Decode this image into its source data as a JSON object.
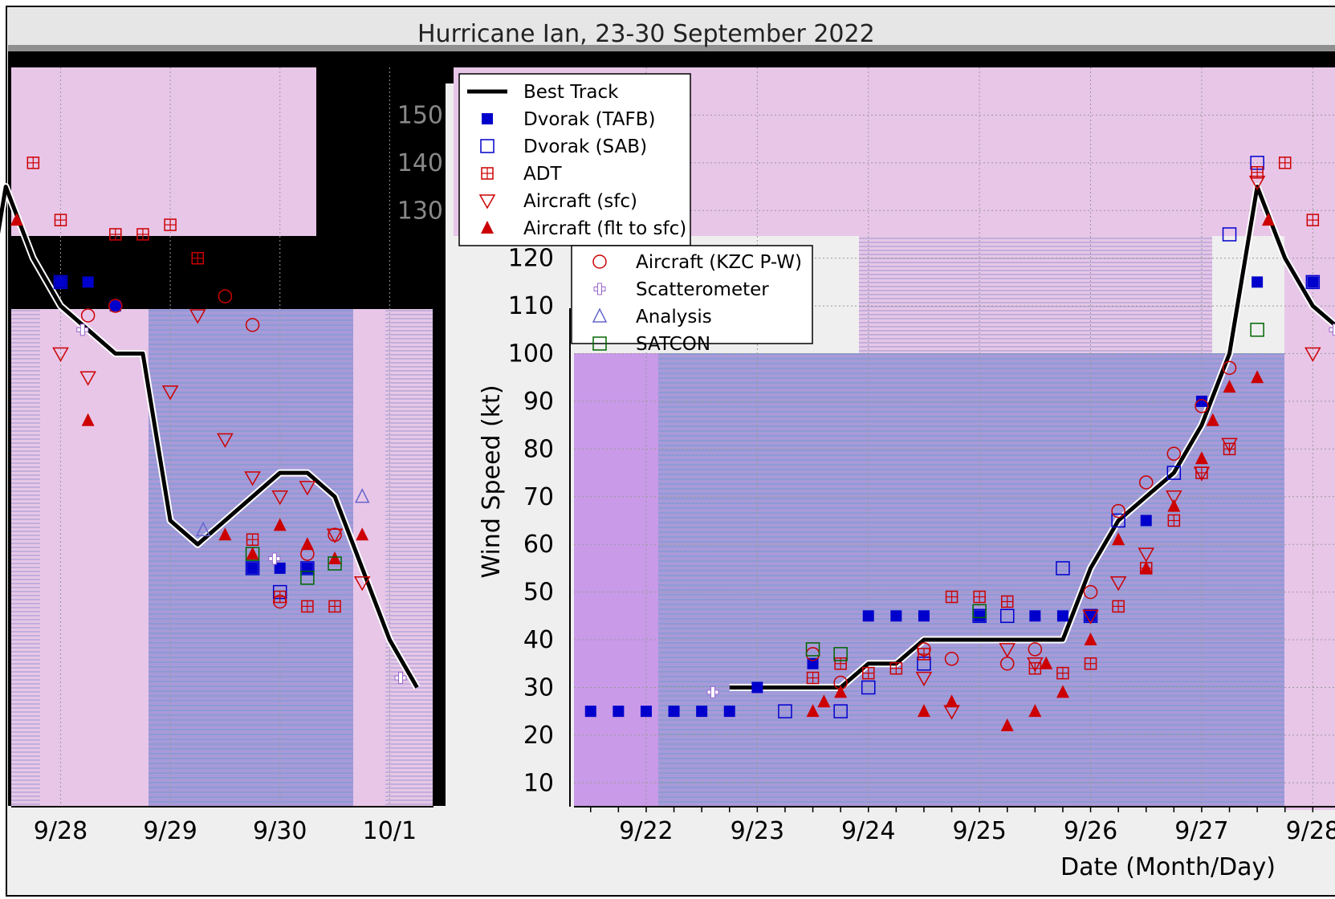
{
  "chart_data": {
    "type": "scatter",
    "title": "Hurricane Ian, 23-30 September 2022",
    "xlabel": "Date (Month/Day)",
    "ylabel": "Wind Speed (kt)",
    "ylim": [
      5,
      160
    ],
    "y_ticks": [
      10,
      20,
      30,
      40,
      50,
      60,
      70,
      80,
      90,
      100,
      110,
      120,
      130,
      140,
      150
    ],
    "x_tick_labels": [
      "9/22",
      "9/23",
      "9/24",
      "9/25",
      "9/26",
      "9/27",
      "9/28",
      "9/29",
      "9/30",
      "10/1"
    ],
    "x_day_range": [
      21,
      32.5
    ],
    "legend_position": "upper-left",
    "legend": [
      "Best Track",
      "Dvorak (TAFB)",
      "Dvorak (SAB)",
      "ADT",
      "Aircraft (sfc)",
      "Aircraft (flt to sfc)",
      "Aircraft (KZC P-W)",
      "Scatterometer",
      "Analysis",
      "SATCON"
    ],
    "series": [
      {
        "name": "Best Track",
        "marker": "line",
        "color": "#000000",
        "x": [
          22.75,
          23.0,
          23.25,
          23.5,
          23.75,
          24.0,
          24.25,
          24.5,
          24.75,
          25.0,
          25.25,
          25.5,
          25.75,
          26.0,
          26.25,
          26.5,
          26.75,
          27.0,
          27.25,
          27.5,
          27.75,
          28.0,
          28.25,
          28.5,
          28.75,
          29.0,
          29.25,
          29.5,
          29.75,
          30.0,
          30.25,
          30.5,
          30.75,
          31.0,
          31.25
        ],
        "y": [
          30,
          30,
          30,
          30,
          30,
          35,
          35,
          40,
          40,
          40,
          40,
          40,
          40,
          55,
          65,
          70,
          75,
          85,
          100,
          135,
          120,
          110,
          105,
          100,
          100,
          65,
          60,
          65,
          70,
          75,
          75,
          70,
          55,
          40,
          30
        ]
      },
      {
        "name": "Dvorak (TAFB)",
        "marker": "square-filled",
        "color": "#0000cc",
        "x": [
          21.5,
          21.75,
          22.0,
          22.25,
          22.5,
          22.75,
          23.0,
          23.5,
          24.0,
          24.25,
          24.5,
          25.0,
          25.5,
          25.75,
          26.0,
          26.5,
          27.0,
          27.5,
          28.0,
          28.25,
          28.5,
          29.75,
          30.0,
          30.25
        ],
        "y": [
          25,
          25,
          25,
          25,
          25,
          25,
          30,
          35,
          45,
          45,
          45,
          45,
          45,
          45,
          45,
          65,
          90,
          115,
          115,
          115,
          110,
          55,
          55,
          55
        ]
      },
      {
        "name": "Dvorak (SAB)",
        "marker": "square-open",
        "color": "#0000cc",
        "x": [
          23.25,
          23.75,
          24.0,
          24.5,
          25.0,
          25.25,
          25.75,
          26.0,
          26.25,
          26.75,
          27.25,
          27.5,
          28.0,
          29.75,
          30.0,
          30.25
        ],
        "y": [
          25,
          25,
          30,
          35,
          45,
          45,
          55,
          45,
          65,
          75,
          125,
          140,
          115,
          55,
          50,
          55
        ]
      },
      {
        "name": "ADT",
        "marker": "square-grid",
        "color": "#cc0000",
        "x": [
          23.5,
          23.75,
          24.0,
          24.25,
          24.5,
          24.75,
          25.0,
          25.25,
          25.5,
          25.75,
          26.0,
          26.25,
          26.5,
          26.75,
          27.0,
          27.25,
          27.5,
          27.75,
          28.0,
          28.5,
          28.75,
          29.0,
          29.25,
          29.75,
          30.0,
          30.25,
          30.5
        ],
        "y": [
          32,
          35,
          33,
          34,
          37,
          49,
          49,
          48,
          34,
          33,
          35,
          47,
          55,
          65,
          75,
          80,
          138,
          140,
          128,
          125,
          125,
          127,
          120,
          61,
          49,
          47,
          47
        ]
      },
      {
        "name": "Aircraft (sfc)",
        "marker": "triangle-down-open",
        "color": "#cc0000",
        "x": [
          24.5,
          24.75,
          25.25,
          25.5,
          26.0,
          26.25,
          26.5,
          26.75,
          27.0,
          27.25,
          27.5,
          28.0,
          28.25,
          29.0,
          29.25,
          29.5,
          29.75,
          30.0,
          30.25,
          30.5,
          30.75
        ],
        "y": [
          32,
          25,
          38,
          35,
          45,
          52,
          58,
          70,
          75,
          81,
          136,
          100,
          95,
          92,
          108,
          82,
          74,
          70,
          72,
          62,
          52
        ]
      },
      {
        "name": "Aircraft (flt to sfc)",
        "marker": "triangle-up-filled",
        "color": "#cc0000",
        "x": [
          23.5,
          23.6,
          23.75,
          24.5,
          24.75,
          25.25,
          25.5,
          25.6,
          25.75,
          26.0,
          26.25,
          26.5,
          26.75,
          27.0,
          27.1,
          27.25,
          27.5,
          27.6,
          28.25,
          29.5,
          29.75,
          30.0,
          30.25,
          30.5,
          30.75
        ],
        "y": [
          25,
          27,
          29,
          25,
          27,
          22,
          25,
          35,
          29,
          40,
          61,
          55,
          68,
          78,
          86,
          93,
          95,
          128,
          86,
          62,
          58,
          64,
          60,
          57,
          62
        ]
      },
      {
        "name": "Aircraft (KZC P-W)",
        "marker": "circle-open",
        "color": "#cc0000",
        "x": [
          23.5,
          23.75,
          24.5,
          24.75,
          25.25,
          25.5,
          26.0,
          26.25,
          26.5,
          26.75,
          27.0,
          27.25,
          28.25,
          28.5,
          29.5,
          29.75,
          30.0,
          30.25,
          30.5
        ],
        "y": [
          37,
          31,
          38,
          36,
          35,
          38,
          50,
          67,
          73,
          79,
          89,
          97,
          108,
          110,
          112,
          106,
          48,
          58,
          62
        ]
      },
      {
        "name": "Scatterometer",
        "marker": "plus",
        "color": "#ffffff",
        "x": [
          22.6,
          28.2,
          29.95,
          31.1
        ],
        "y": [
          29,
          105,
          57,
          32
        ]
      },
      {
        "name": "Analysis",
        "marker": "triangle-up-open",
        "color": "#6666cc",
        "x": [
          29.3,
          30.75
        ],
        "y": [
          63,
          70
        ]
      },
      {
        "name": "SATCON",
        "marker": "square-open",
        "color": "#006600",
        "x": [
          23.5,
          23.75,
          25.0,
          27.5,
          29.75,
          30.25,
          30.5
        ],
        "y": [
          38,
          37,
          46,
          105,
          58,
          53,
          56
        ]
      }
    ]
  }
}
